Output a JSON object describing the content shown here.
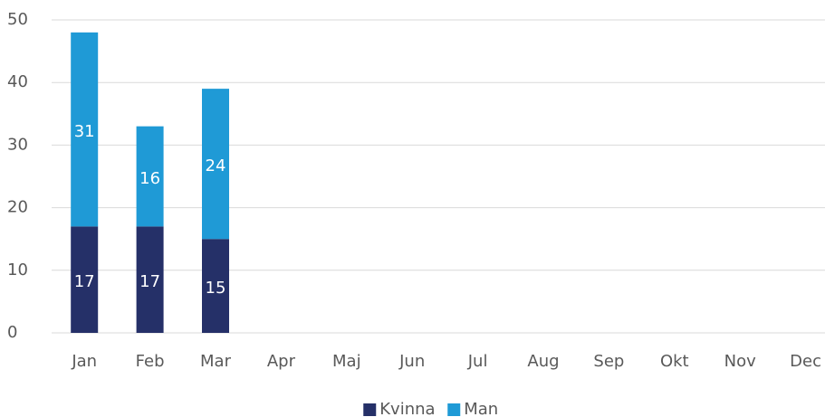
{
  "chart_data": {
    "type": "bar",
    "stacked": true,
    "categories": [
      "Jan",
      "Feb",
      "Mar",
      "Apr",
      "Maj",
      "Jun",
      "Jul",
      "Aug",
      "Sep",
      "Okt",
      "Nov",
      "Dec"
    ],
    "series": [
      {
        "name": "Kvinna",
        "color": "#253068",
        "values": [
          17,
          17,
          15,
          null,
          null,
          null,
          null,
          null,
          null,
          null,
          null,
          null
        ]
      },
      {
        "name": "Man",
        "color": "#1f9ad6",
        "values": [
          31,
          16,
          24,
          null,
          null,
          null,
          null,
          null,
          null,
          null,
          null,
          null
        ]
      }
    ],
    "ylim": [
      0,
      50
    ],
    "yticks": [
      0,
      10,
      20,
      30,
      40,
      50
    ],
    "grid": true,
    "legend": "bottom"
  }
}
